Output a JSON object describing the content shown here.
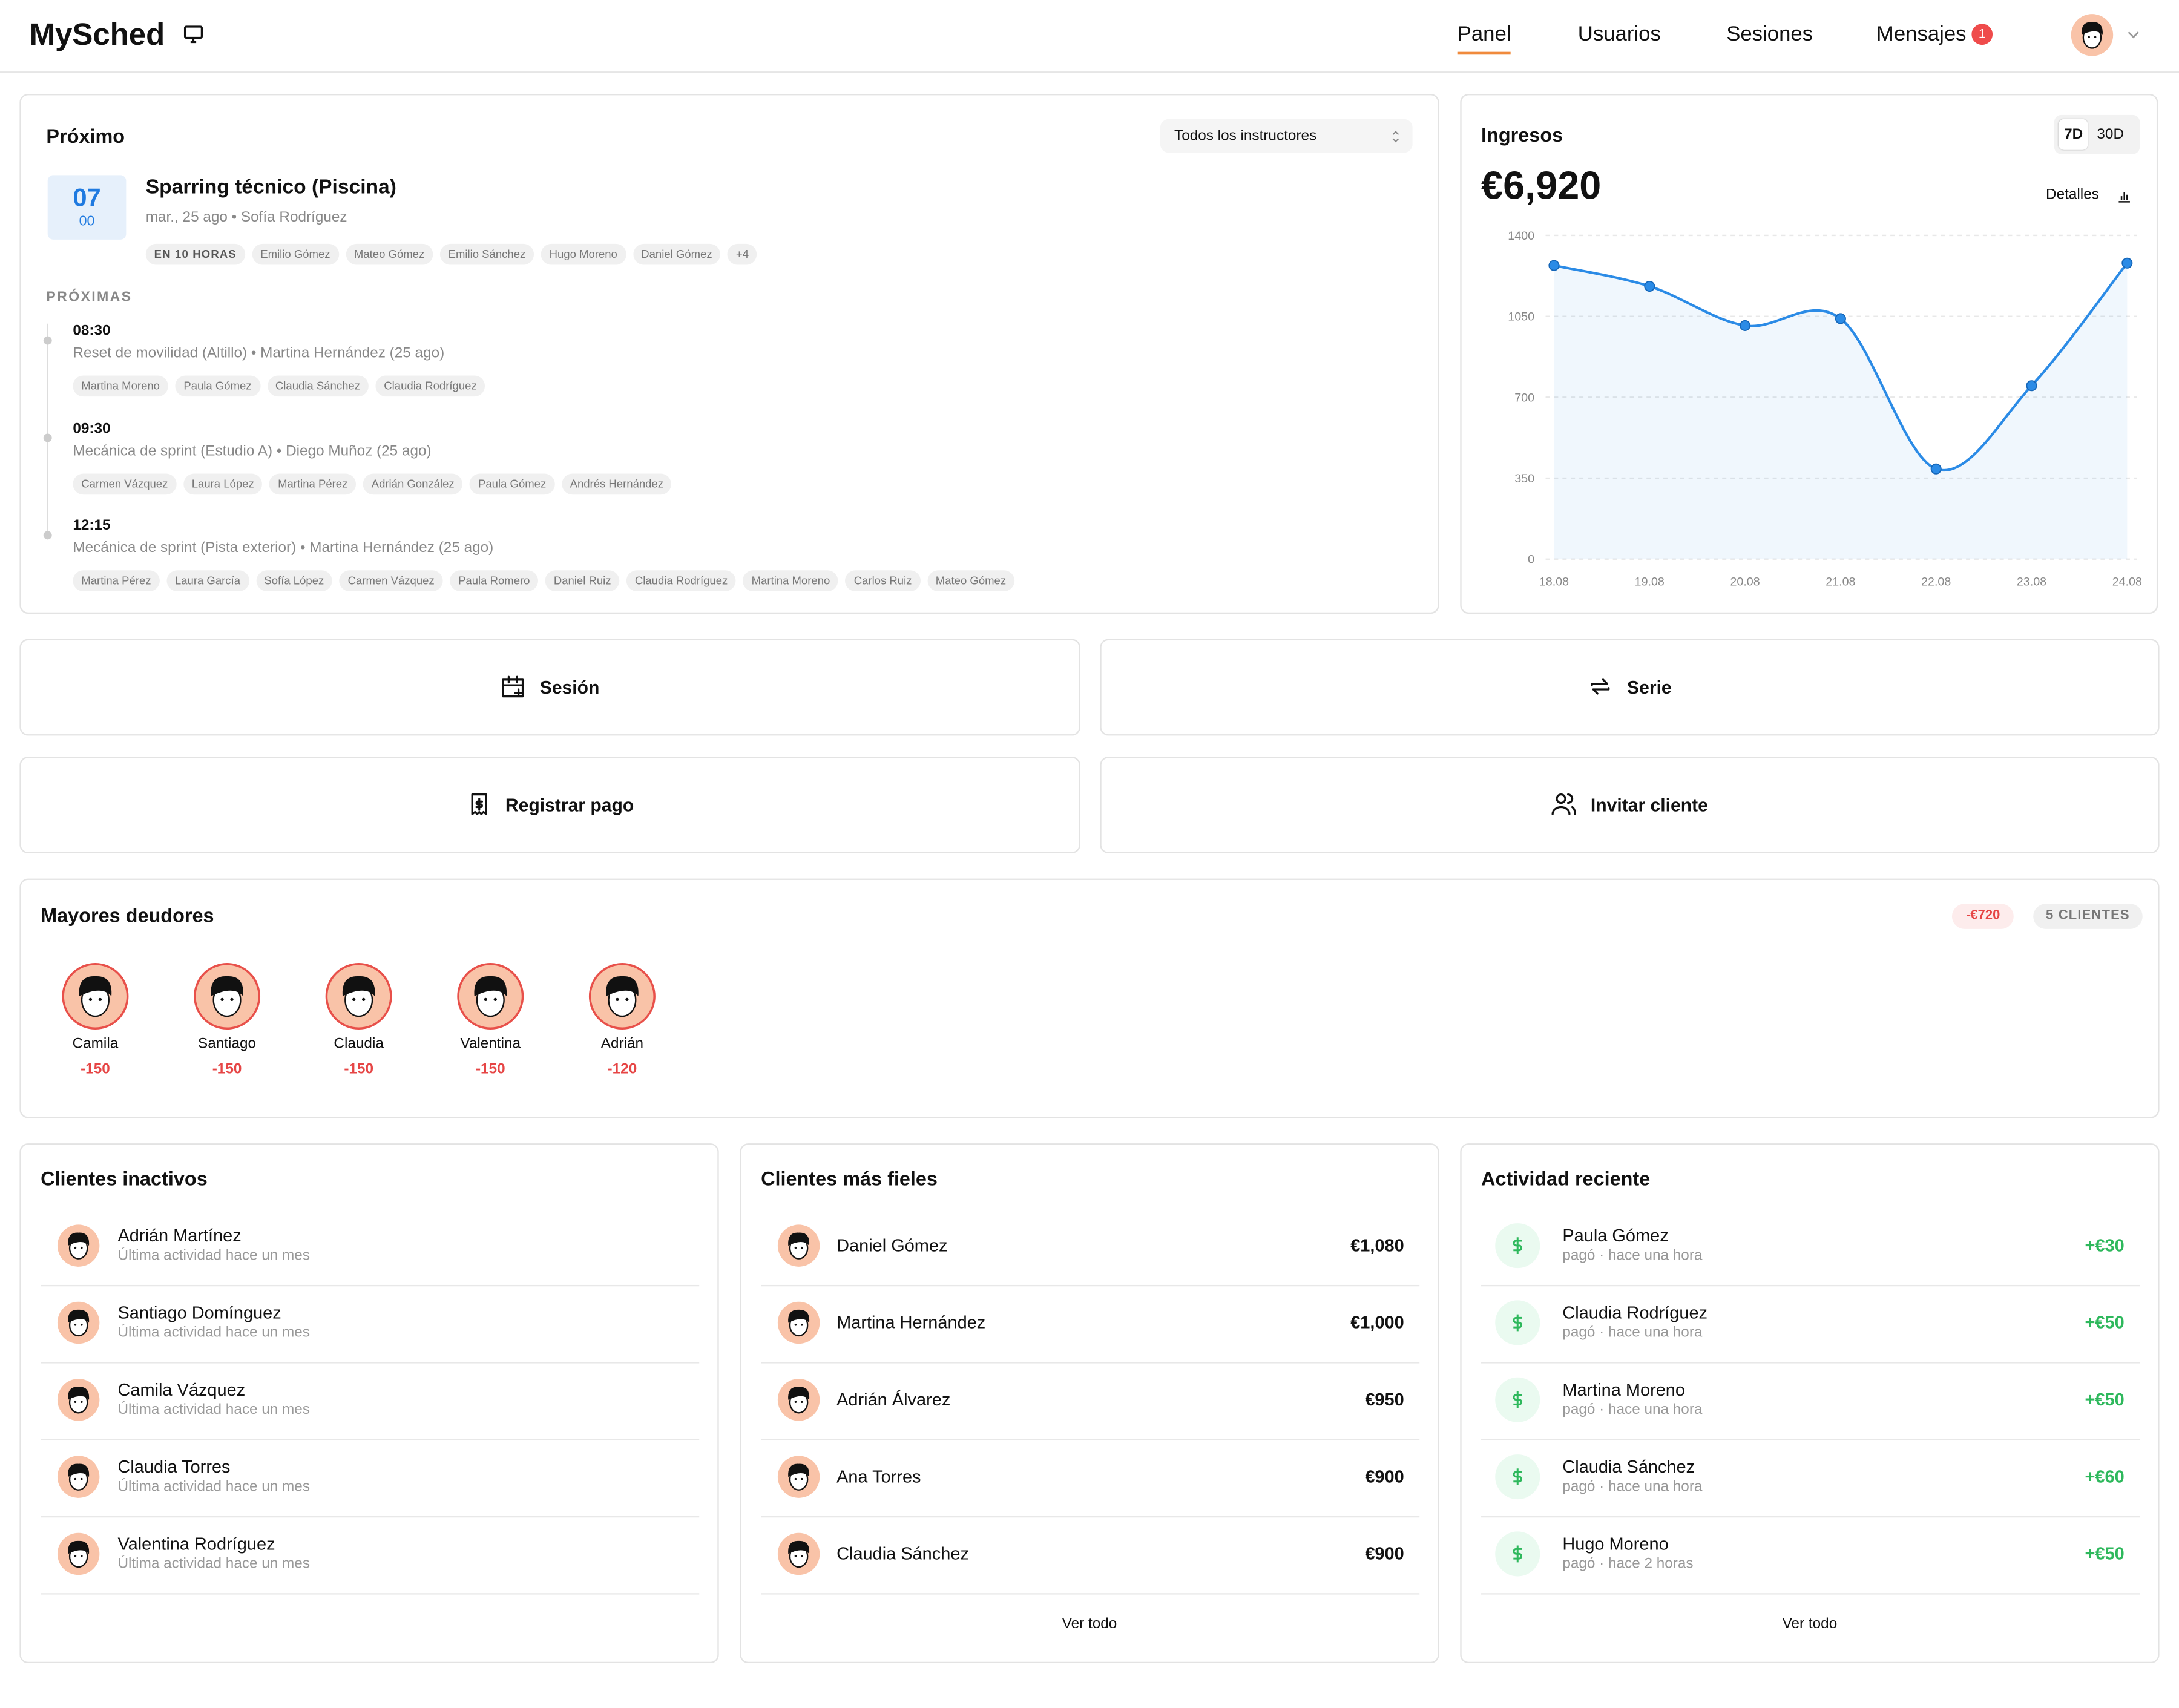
{
  "nav": {
    "brand": "MySched",
    "links": [
      "Panel",
      "Usuarios",
      "Sesiones",
      "Mensajes"
    ],
    "badge": 1
  },
  "upcoming": {
    "title": "Próximo",
    "filter": "Todos los instructores",
    "day": "07",
    "month": "00",
    "event": {
      "title": "Sparring técnico (Piscina)",
      "meta": "mar., 25 ago • Sofía Rodríguez",
      "tags": [
        "EN 10 HORAS",
        "Emilio Gómez",
        "Mateo Gómez",
        "Emilio Sánchez",
        "Hugo Moreno",
        "Daniel Gómez",
        "+4"
      ]
    },
    "next_title": "PRÓXIMAS",
    "next": [
      {
        "time": "08:30",
        "desc": "Reset de movilidad (Altillo) • Martina Hernández (25 ago)",
        "people": [
          "Martina Moreno",
          "Paula Gómez",
          "Claudia Sánchez",
          "Claudia Rodríguez"
        ]
      },
      {
        "time": "09:30",
        "desc": "Mecánica de sprint (Estudio A) • Diego Muñoz (25 ago)",
        "people": [
          "Carmen Vázquez",
          "Laura López",
          "Martina Pérez",
          "Adrián González",
          "Paula Gómez",
          "Andrés Hernández"
        ]
      },
      {
        "time": "12:15",
        "desc": "Mecánica de sprint (Pista exterior) • Martina Hernández (25 ago)",
        "people": [
          "Martina Pérez",
          "Laura García",
          "Sofía López",
          "Carmen Vázquez",
          "Paula Romero",
          "Daniel Ruiz",
          "Claudia Rodríguez",
          "Martina Moreno",
          "Carlos Ruiz",
          "Mateo Gómez"
        ]
      }
    ]
  },
  "revenue": {
    "title": "Ingresos",
    "ranges": [
      "7D",
      "30D"
    ],
    "total": "€6,920",
    "details": "Detalles"
  },
  "chart_data": {
    "type": "line",
    "categories": [
      "18.08",
      "19.08",
      "20.08",
      "21.08",
      "22.08",
      "23.08",
      "24.08"
    ],
    "series": [
      {
        "color": "#2b8be6",
        "values": [
          1270,
          1180,
          1010,
          1040,
          390,
          750,
          1280
        ]
      }
    ],
    "ylim": [
      0,
      1400
    ],
    "yticks": [
      0,
      350,
      700,
      1050,
      1400
    ],
    "grid": true
  },
  "actions": [
    "Sesión",
    "Serie",
    "Registrar pago",
    "Invitar cliente"
  ],
  "debtors": {
    "title": "Mayores deudores",
    "total": "-€720",
    "count": "5 CLIENTES",
    "items": [
      {
        "name": "Camila",
        "amount": -150
      },
      {
        "name": "Santiago",
        "amount": -150
      },
      {
        "name": "Claudia",
        "amount": -150
      },
      {
        "name": "Valentina",
        "amount": -150
      },
      {
        "name": "Adrián",
        "amount": -120
      }
    ]
  },
  "inactive": {
    "title": "Clientes inactivos",
    "items": [
      {
        "name": "Adrián Martínez",
        "note": "Última actividad hace un mes"
      },
      {
        "name": "Santiago Domínguez",
        "note": "Última actividad hace un mes"
      },
      {
        "name": "Camila Vázquez",
        "note": "Última actividad hace un mes"
      },
      {
        "name": "Claudia Torres",
        "note": "Última actividad hace un mes"
      },
      {
        "name": "Valentina Rodríguez",
        "note": "Última actividad hace un mes"
      }
    ]
  },
  "loyal": {
    "title": "Clientes más fieles",
    "items": [
      {
        "name": "Daniel Gómez",
        "amount": "€1,080"
      },
      {
        "name": "Martina Hernández",
        "amount": "€1,000"
      },
      {
        "name": "Adrián Álvarez",
        "amount": "€950"
      },
      {
        "name": "Ana Torres",
        "amount": "€900"
      },
      {
        "name": "Claudia Sánchez",
        "amount": "€900"
      }
    ],
    "more": "Ver todo"
  },
  "activity": {
    "title": "Actividad reciente",
    "items": [
      {
        "name": "Paula Gómez",
        "note": "pagó · hace una hora",
        "amount": "+€30"
      },
      {
        "name": "Claudia Rodríguez",
        "note": "pagó · hace una hora",
        "amount": "+€50"
      },
      {
        "name": "Martina Moreno",
        "note": "pagó · hace una hora",
        "amount": "+€50"
      },
      {
        "name": "Claudia Sánchez",
        "note": "pagó · hace una hora",
        "amount": "+€60"
      },
      {
        "name": "Hugo Moreno",
        "note": "pagó · hace 2 horas",
        "amount": "+€50"
      }
    ],
    "more": "Ver todo"
  }
}
